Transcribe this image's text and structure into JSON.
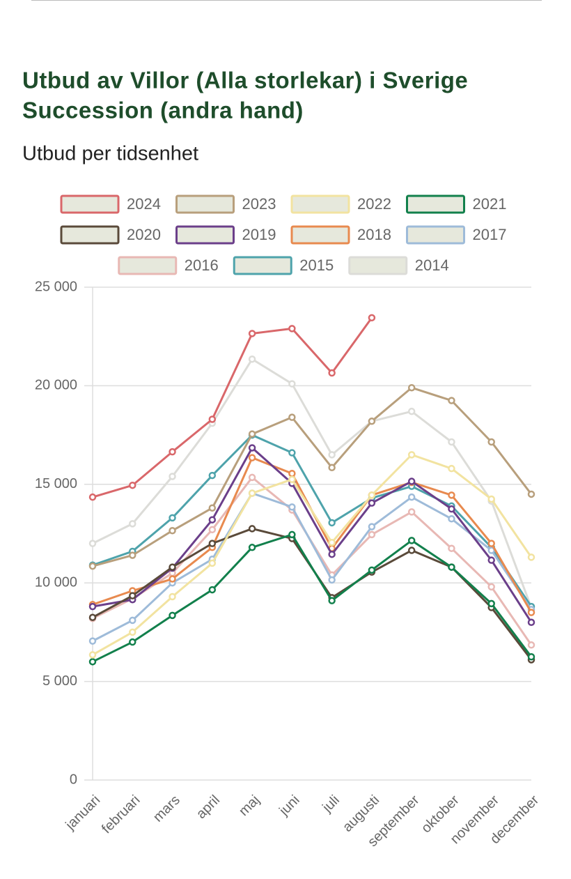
{
  "chart_data": {
    "type": "line",
    "title": "Utbud av Villor (Alla storlekar) i Sverige",
    "subtitle": "Succession (andra hand)",
    "y_label": "Utbud per tidsenhet",
    "categories": [
      "januari",
      "februari",
      "mars",
      "april",
      "maj",
      "juni",
      "juli",
      "augusti",
      "september",
      "oktober",
      "november",
      "december"
    ],
    "ylim": [
      0,
      25000
    ],
    "yticks": [
      0,
      {
        "value": 5000,
        "label": "5 000"
      },
      {
        "value": 10000,
        "label": "10 000"
      },
      {
        "value": 15000,
        "label": "15 000"
      },
      {
        "value": 20000,
        "label": "20 000"
      },
      {
        "value": 25000,
        "label": "25 000"
      }
    ],
    "grid": true,
    "series": [
      {
        "name": "2024",
        "color": "#d9676a",
        "values": [
          14350,
          14950,
          16650,
          18300,
          22650,
          22900,
          20650,
          23450,
          null,
          null,
          null,
          null
        ]
      },
      {
        "name": "2023",
        "color": "#b89f7c",
        "values": [
          10850,
          11400,
          12650,
          13800,
          17550,
          18400,
          15850,
          18200,
          19900,
          19250,
          17150,
          14500
        ]
      },
      {
        "name": "2022",
        "color": "#f2e3a0",
        "values": [
          6350,
          7500,
          9300,
          11000,
          14550,
          15250,
          12050,
          14450,
          16500,
          15800,
          14250,
          11300
        ]
      },
      {
        "name": "2021",
        "color": "#12804c",
        "values": [
          6000,
          7000,
          8350,
          9650,
          11800,
          12450,
          9100,
          10650,
          12150,
          10800,
          8950,
          6250
        ]
      },
      {
        "name": "2020",
        "color": "#5a4a3a",
        "values": [
          8250,
          9350,
          10800,
          12000,
          12750,
          12250,
          9250,
          10550,
          11650,
          10800,
          8750,
          6100
        ]
      },
      {
        "name": "2019",
        "color": "#6b3f8a",
        "values": [
          8800,
          9150,
          10750,
          13200,
          16850,
          15050,
          11450,
          14050,
          15150,
          13750,
          11150,
          8000
        ]
      },
      {
        "name": "2018",
        "color": "#e88a4f",
        "values": [
          8900,
          9600,
          10200,
          11800,
          16350,
          15550,
          11750,
          14450,
          15100,
          14450,
          12000,
          8500
        ]
      },
      {
        "name": "2017",
        "color": "#9ebbd9",
        "values": [
          7050,
          8100,
          10000,
          11200,
          14550,
          13850,
          10150,
          12850,
          14350,
          13250,
          11650,
          8650
        ]
      },
      {
        "name": "2016",
        "color": "#e8b8b4",
        "values": [
          8200,
          9200,
          10500,
          12700,
          15350,
          13700,
          10400,
          12450,
          13600,
          11750,
          9800,
          6850
        ]
      },
      {
        "name": "2015",
        "color": "#4ea3ab",
        "values": [
          10900,
          11600,
          13300,
          15450,
          17500,
          16600,
          13050,
          14300,
          14900,
          13900,
          11800,
          8800
        ]
      },
      {
        "name": "2014",
        "color": "#dcdcd8",
        "values": [
          12000,
          13000,
          15400,
          18100,
          21350,
          20100,
          16500,
          18200,
          18700,
          17150,
          14150,
          8750
        ]
      }
    ]
  }
}
